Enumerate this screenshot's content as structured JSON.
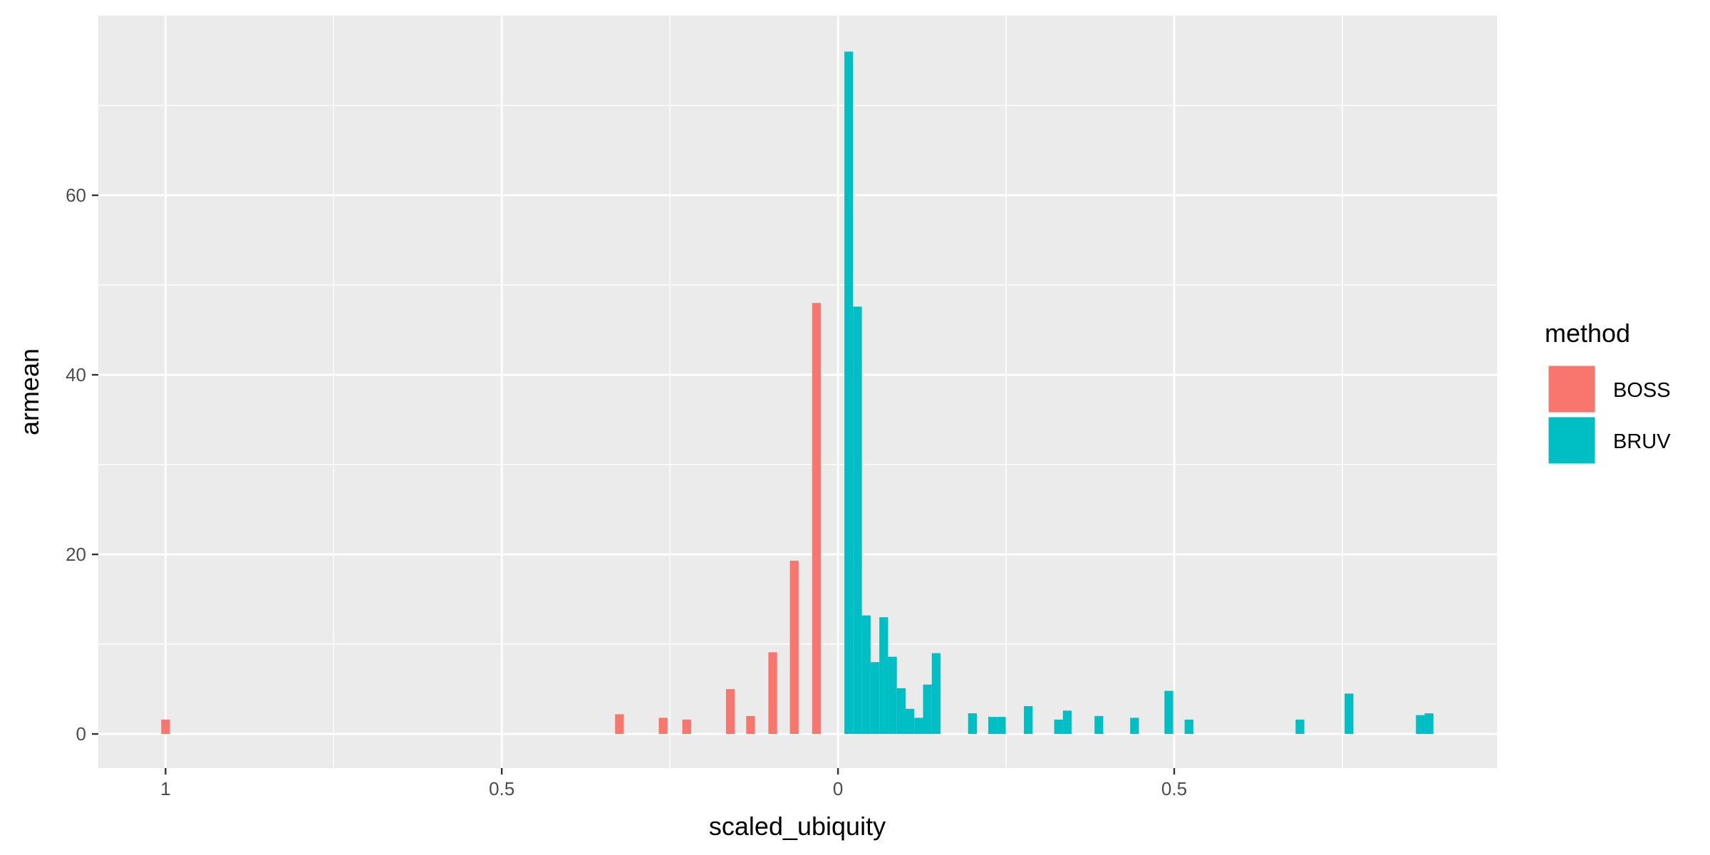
{
  "chart_data": {
    "type": "bar",
    "xlabel": "scaled_ubiquity",
    "ylabel": "armean",
    "x_axis": {
      "range": [
        -1.1,
        0.98
      ],
      "ticks": [
        -1,
        -0.5,
        0,
        0.5
      ],
      "tick_labels": [
        "1",
        "0.5",
        "0",
        "0.5"
      ],
      "minor_gridlines": [
        -0.75,
        -0.25,
        0.25,
        0.75
      ]
    },
    "y_axis": {
      "range": [
        -3.8,
        80
      ],
      "ticks": [
        0,
        20,
        40,
        60
      ],
      "tick_labels": [
        "0",
        "20",
        "40",
        "60"
      ],
      "minor_gridlines": [
        10,
        30,
        50,
        70
      ]
    },
    "grid": true,
    "bar_width": 0.013,
    "legend": {
      "title": "method",
      "placement": "right",
      "entries": [
        {
          "label": "BOSS",
          "color": "#F8766D"
        },
        {
          "label": "BRUV",
          "color": "#00BFC4"
        }
      ]
    },
    "series": [
      {
        "name": "BOSS",
        "color": "#F8766D",
        "points": [
          {
            "x": -1.0,
            "y": 1.6
          },
          {
            "x": -0.325,
            "y": 2.2
          },
          {
            "x": -0.26,
            "y": 1.8
          },
          {
            "x": -0.225,
            "y": 1.6
          },
          {
            "x": -0.16,
            "y": 5.0
          },
          {
            "x": -0.13,
            "y": 2.0
          },
          {
            "x": -0.097,
            "y": 9.1
          },
          {
            "x": -0.065,
            "y": 19.3
          },
          {
            "x": -0.032,
            "y": 48.0
          }
        ]
      },
      {
        "name": "BRUV",
        "color": "#00BFC4",
        "points": [
          {
            "x": 0.016,
            "y": 76.0
          },
          {
            "x": 0.029,
            "y": 47.6
          },
          {
            "x": 0.042,
            "y": 13.2
          },
          {
            "x": 0.055,
            "y": 8.0
          },
          {
            "x": 0.068,
            "y": 13.0
          },
          {
            "x": 0.081,
            "y": 8.6
          },
          {
            "x": 0.094,
            "y": 5.1
          },
          {
            "x": 0.107,
            "y": 2.8
          },
          {
            "x": 0.12,
            "y": 1.8
          },
          {
            "x": 0.133,
            "y": 5.5
          },
          {
            "x": 0.146,
            "y": 9.0
          },
          {
            "x": 0.2,
            "y": 2.3
          },
          {
            "x": 0.23,
            "y": 1.9
          },
          {
            "x": 0.243,
            "y": 1.9
          },
          {
            "x": 0.283,
            "y": 3.1
          },
          {
            "x": 0.328,
            "y": 1.6
          },
          {
            "x": 0.341,
            "y": 2.6
          },
          {
            "x": 0.388,
            "y": 2.0
          },
          {
            "x": 0.441,
            "y": 1.8
          },
          {
            "x": 0.492,
            "y": 4.8
          },
          {
            "x": 0.522,
            "y": 1.6
          },
          {
            "x": 0.687,
            "y": 1.6
          },
          {
            "x": 0.76,
            "y": 4.5
          },
          {
            "x": 0.866,
            "y": 2.1
          },
          {
            "x": 0.879,
            "y": 2.3
          }
        ]
      }
    ]
  }
}
